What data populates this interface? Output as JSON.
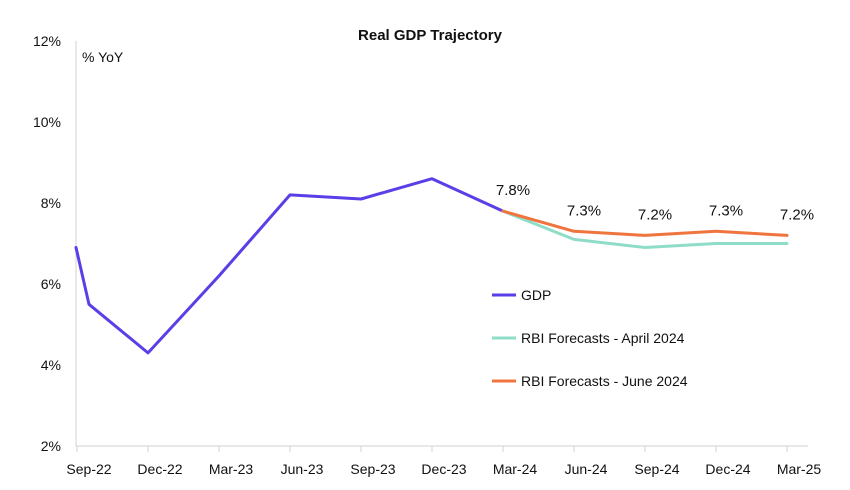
{
  "chart_data": {
    "type": "line",
    "title": "Real GDP Trajectory",
    "ylabel": "% YoY",
    "xlabel": "",
    "ylim": [
      2,
      12
    ],
    "yticks": [
      2,
      4,
      6,
      8,
      10,
      12
    ],
    "ytick_labels": [
      "2%",
      "4%",
      "6%",
      "8%",
      "10%",
      "12%"
    ],
    "categories": [
      "Sep-22",
      "Dec-22",
      "Mar-23",
      "Jun-23",
      "Sep-23",
      "Dec-23",
      "Mar-24",
      "Jun-24",
      "Sep-24",
      "Dec-24",
      "Mar-25"
    ],
    "grid": false,
    "legend_position": "center-right",
    "series": [
      {
        "name": "GDP",
        "color": "#5b3ee8",
        "points": [
          {
            "x": "Sep-22",
            "y": 6.9
          },
          {
            "x": "Sep-22",
            "y": 5.5
          },
          {
            "x": "Dec-22",
            "y": 4.3
          },
          {
            "x": "Mar-23",
            "y": 6.2
          },
          {
            "x": "Jun-23",
            "y": 8.2
          },
          {
            "x": "Sep-23",
            "y": 8.1
          },
          {
            "x": "Dec-23",
            "y": 8.6
          },
          {
            "x": "Mar-24",
            "y": 7.8
          }
        ]
      },
      {
        "name": "RBI Forecasts - April 2024",
        "color": "#8fdcc9",
        "points": [
          {
            "x": "Mar-24",
            "y": 7.8
          },
          {
            "x": "Jun-24",
            "y": 7.1
          },
          {
            "x": "Sep-24",
            "y": 6.9
          },
          {
            "x": "Dec-24",
            "y": 7.0
          },
          {
            "x": "Mar-25",
            "y": 7.0
          }
        ]
      },
      {
        "name": "RBI Forecasts - June 2024",
        "color": "#f0743e",
        "points": [
          {
            "x": "Mar-24",
            "y": 7.8
          },
          {
            "x": "Jun-24",
            "y": 7.3
          },
          {
            "x": "Sep-24",
            "y": 7.2
          },
          {
            "x": "Dec-24",
            "y": 7.3
          },
          {
            "x": "Mar-25",
            "y": 7.2
          }
        ]
      }
    ],
    "data_labels": [
      {
        "x": "Mar-24",
        "y": 7.8,
        "text": "7.8%"
      },
      {
        "x": "Jun-24",
        "y": 7.3,
        "text": "7.3%"
      },
      {
        "x": "Sep-24",
        "y": 7.2,
        "text": "7.2%"
      },
      {
        "x": "Dec-24",
        "y": 7.3,
        "text": "7.3%"
      },
      {
        "x": "Mar-25",
        "y": 7.2,
        "text": "7.2%"
      }
    ]
  }
}
